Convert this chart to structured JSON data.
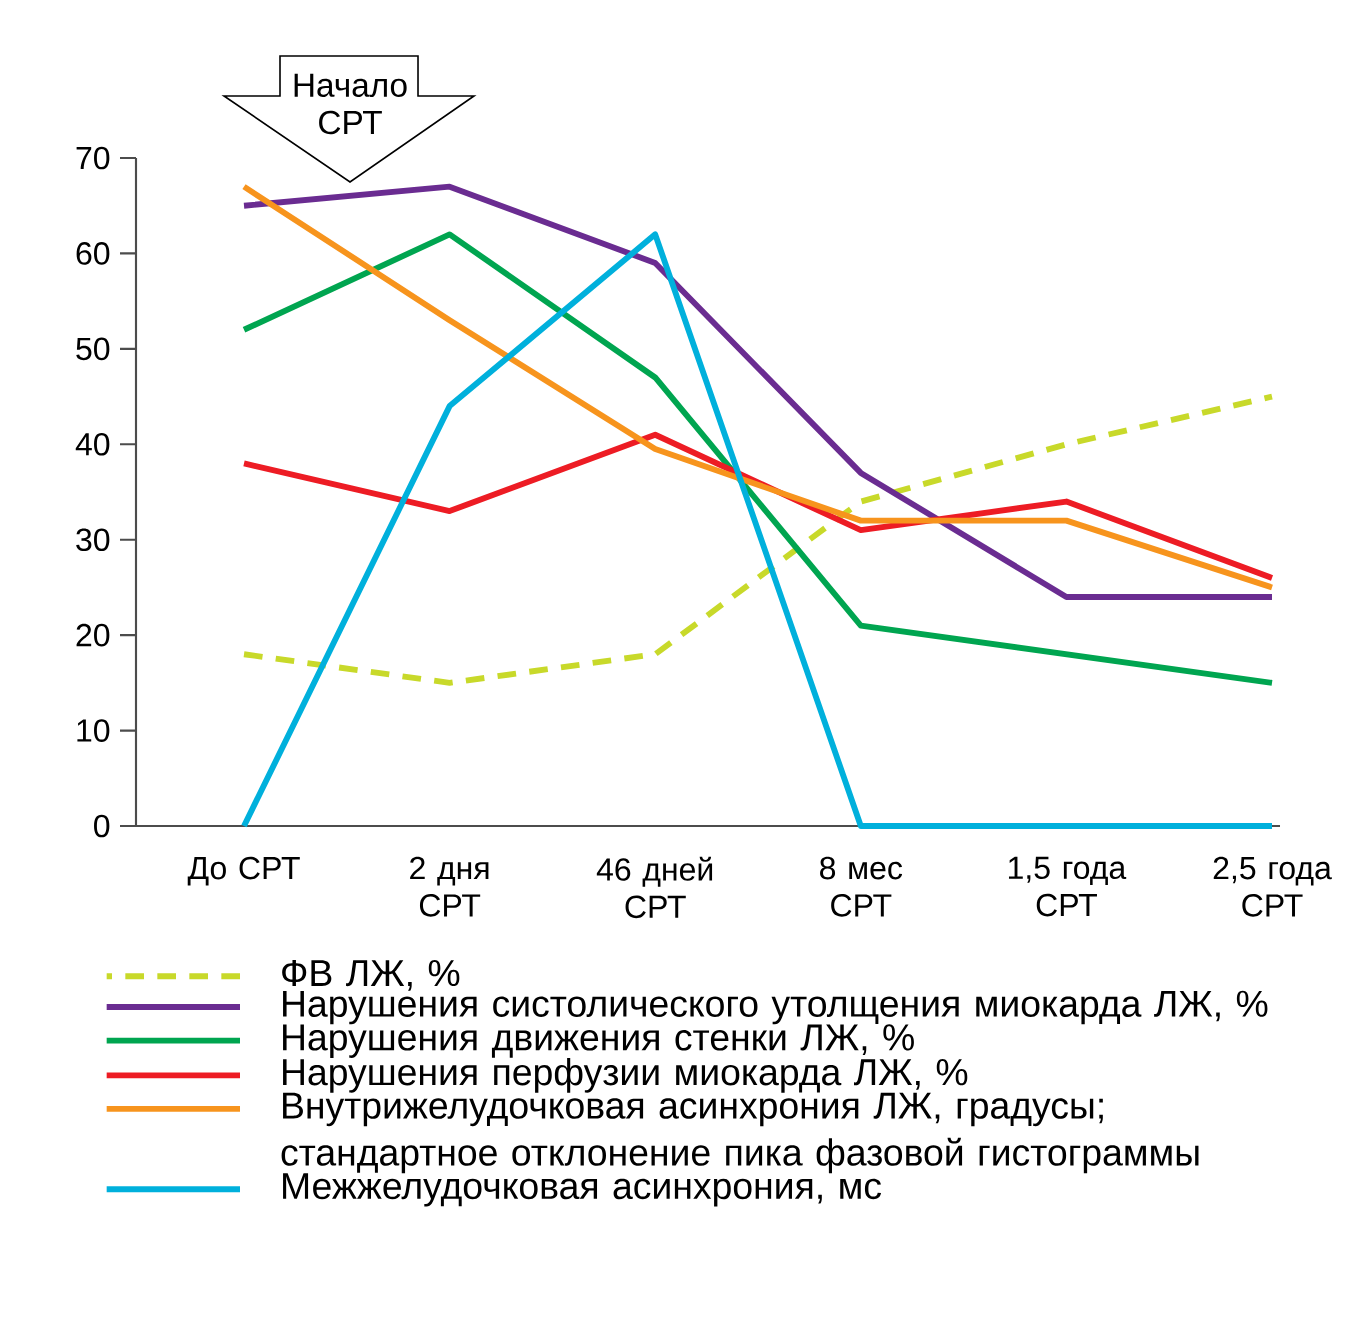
{
  "chart_data": {
    "type": "line",
    "categories": [
      "До СРТ",
      "2 дня СРТ",
      "46 дней СРТ",
      "8 мес СРТ",
      "1,5 года СРТ",
      "2,5 года СРТ"
    ],
    "ylim": [
      0,
      70
    ],
    "yticks": [
      0,
      10,
      20,
      30,
      40,
      50,
      60,
      70
    ],
    "annotations": [
      "Начало СРТ"
    ],
    "legend": "bottom",
    "line_style": "solid",
    "series": [
      {
        "name": "ФВ ЛЖ, %",
        "color": "#c8d92a",
        "line_style": "dashed",
        "values": [
          18,
          15,
          18,
          34,
          40,
          45
        ]
      },
      {
        "name": "Нарушения систолического утолщения миокарда ЛЖ, %",
        "color": "#6a2c91",
        "values": [
          65,
          67,
          59,
          37,
          24,
          24
        ]
      },
      {
        "name": "Нарушения движения стенки ЛЖ, %",
        "color": "#00a550",
        "values": [
          52,
          62,
          47,
          21,
          18,
          15
        ]
      },
      {
        "name": "Нарушения перфузии миокарда ЛЖ, %",
        "color": "#ed1c24",
        "values": [
          38,
          33,
          41,
          31,
          34,
          26
        ]
      },
      {
        "name": "Внутрижелудочковая асинхрония ЛЖ, градусы; стандартное отклонение пика фазовой гистограммы",
        "color": "#f7941d",
        "values": [
          67,
          53,
          39.5,
          32,
          32,
          25
        ]
      },
      {
        "name": "Межжелудочковая асинхрония, мс",
        "color": "#00b0dc",
        "values": [
          0,
          44,
          62,
          0,
          0,
          0
        ]
      }
    ]
  }
}
